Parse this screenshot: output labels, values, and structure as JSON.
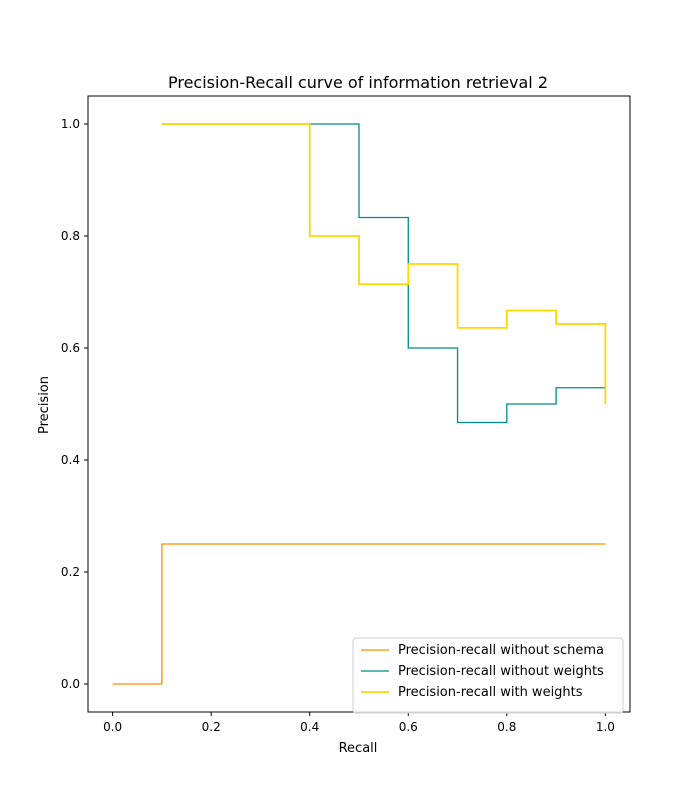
{
  "chart_data": {
    "type": "line",
    "step": "post",
    "title": "Precision-Recall curve of information retrieval 2",
    "xlabel": "Recall",
    "ylabel": "Precision",
    "xlim": [
      -0.05,
      1.05
    ],
    "ylim": [
      -0.05,
      1.05
    ],
    "xticks": [
      0.0,
      0.2,
      0.4,
      0.6,
      0.8,
      1.0
    ],
    "yticks": [
      0.0,
      0.2,
      0.4,
      0.6,
      0.8,
      1.0
    ],
    "xtick_labels": [
      "0.0",
      "0.2",
      "0.4",
      "0.6",
      "0.8",
      "1.0"
    ],
    "ytick_labels": [
      "0.0",
      "0.2",
      "0.4",
      "0.6",
      "0.8",
      "1.0"
    ],
    "grid": false,
    "legend_position": "lower-right",
    "series": [
      {
        "name": "Precision-recall without schema",
        "color": "#ff8c00",
        "x": [
          0.0,
          0.1,
          1.0
        ],
        "y": [
          0.0,
          0.25,
          0.25
        ]
      },
      {
        "name": "Precision-recall without weights",
        "color": "#008b8b",
        "x": [
          0.1,
          0.5,
          0.6,
          0.7,
          0.8,
          0.9,
          1.0
        ],
        "y": [
          1.0,
          0.833,
          0.6,
          0.467,
          0.5,
          0.529,
          0.5
        ]
      },
      {
        "name": "Precision-recall with weights",
        "color": "#ffd700",
        "x": [
          0.1,
          0.4,
          0.5,
          0.6,
          0.7,
          0.8,
          0.9,
          1.0
        ],
        "y": [
          1.0,
          0.8,
          0.714,
          0.75,
          0.636,
          0.667,
          0.643,
          0.5
        ]
      }
    ]
  }
}
